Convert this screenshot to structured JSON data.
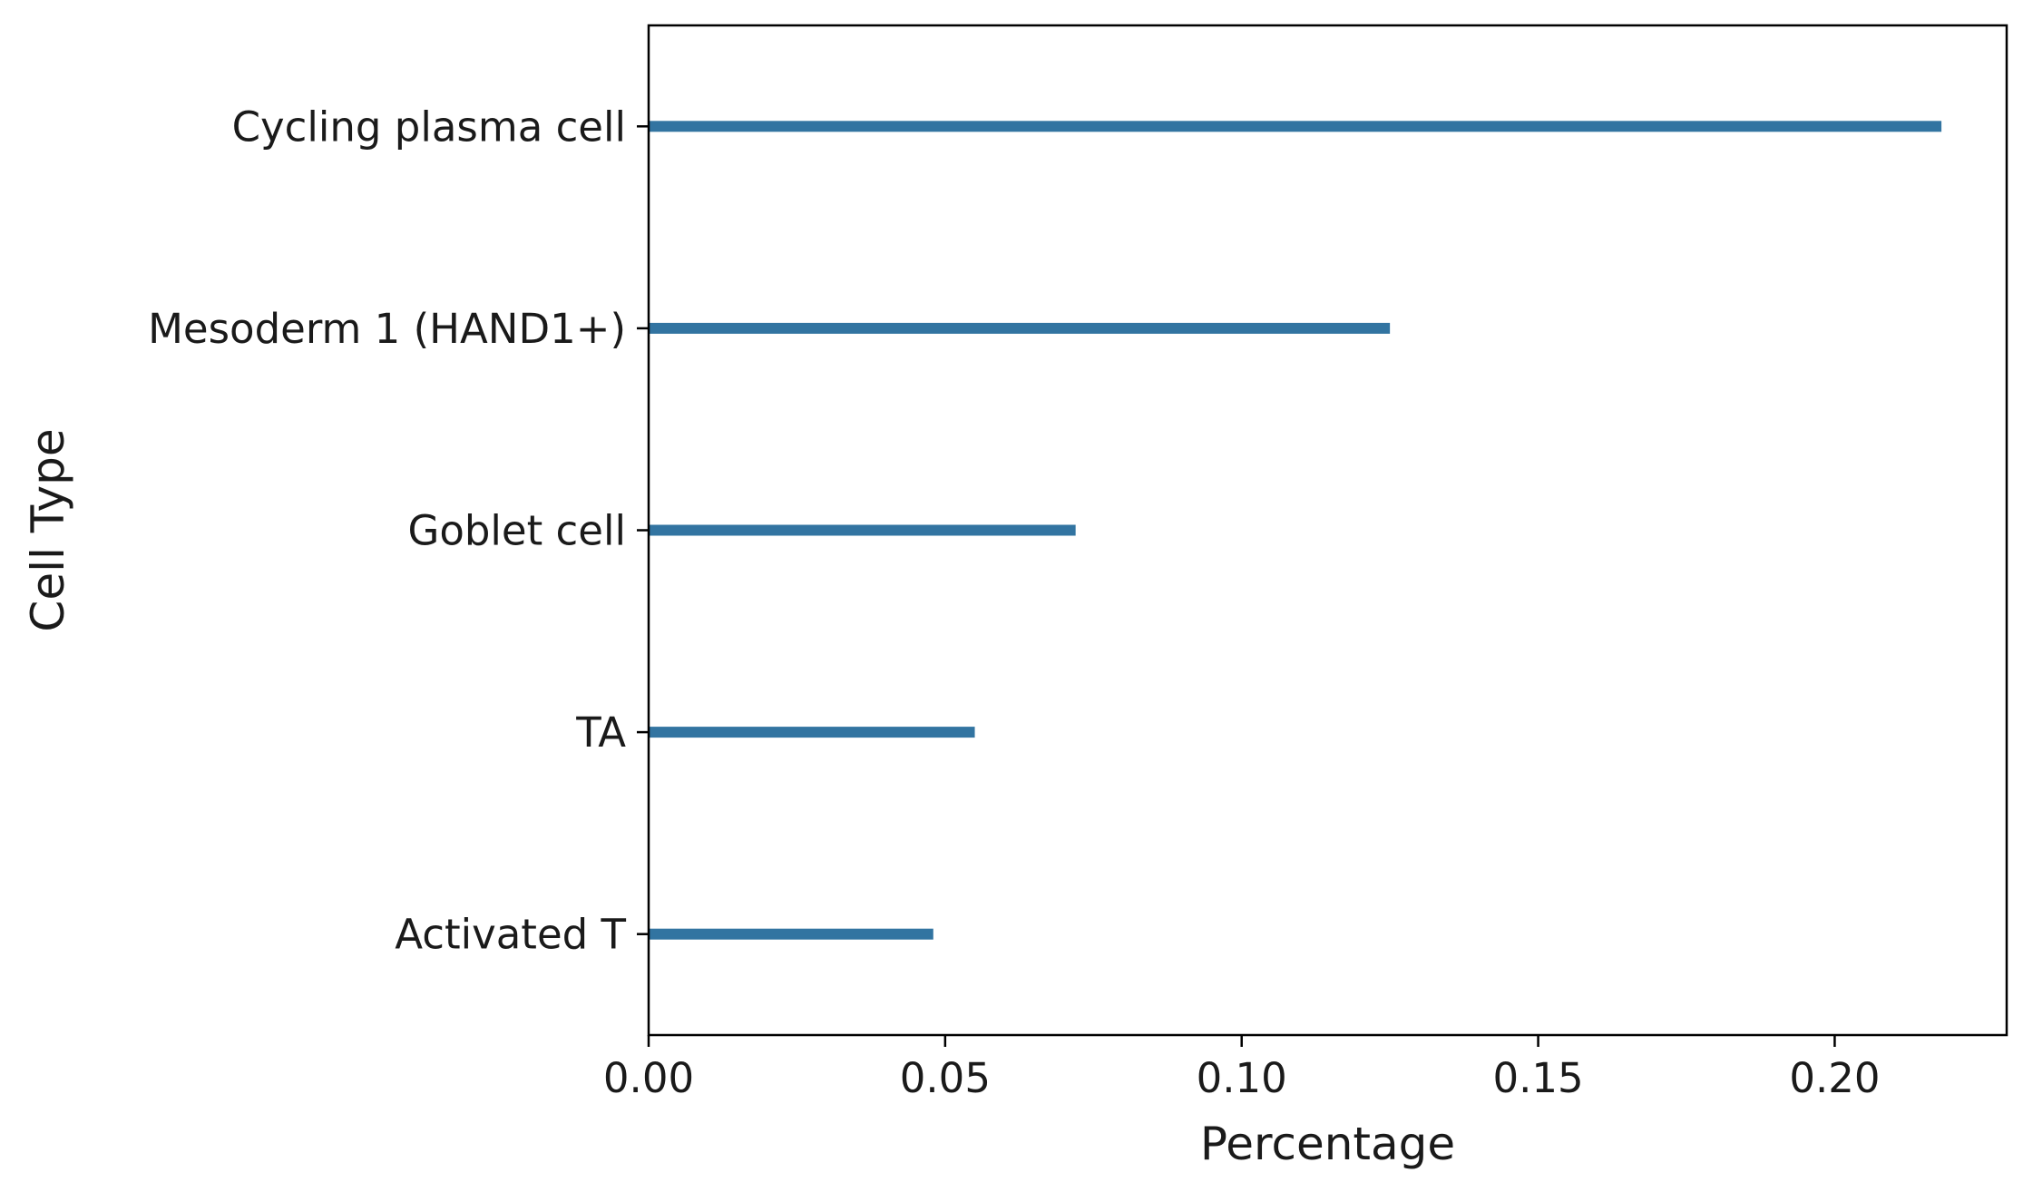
{
  "chart_data": {
    "type": "bar",
    "orientation": "horizontal",
    "categories": [
      "Cycling plasma cell",
      "Mesoderm 1 (HAND1+)",
      "Goblet cell",
      "TA",
      "Activated T"
    ],
    "values": [
      0.218,
      0.125,
      0.072,
      0.055,
      0.048
    ],
    "xlabel": "Percentage",
    "ylabel": "Cell Type",
    "xlim": [
      0,
      0.229
    ],
    "xticks": [
      0.0,
      0.05,
      0.1,
      0.15,
      0.2
    ],
    "xtick_labels": [
      "0.00",
      "0.05",
      "0.10",
      "0.15",
      "0.20"
    ],
    "grid": false,
    "bar_color": "#3274a1"
  }
}
